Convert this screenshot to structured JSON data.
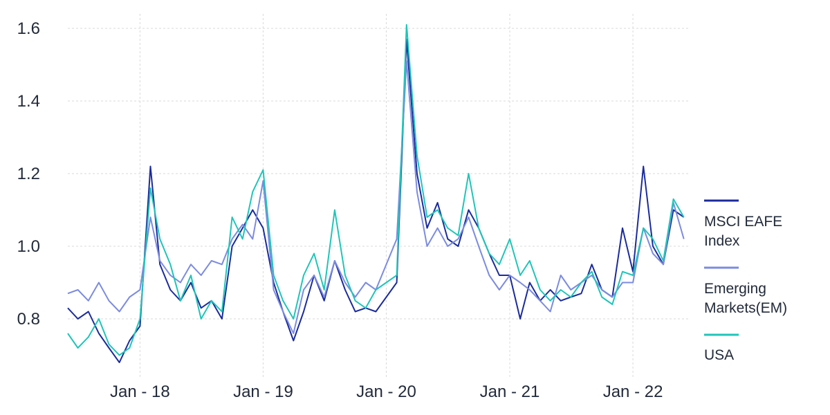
{
  "chart_data": {
    "type": "line",
    "title": "",
    "xlabel": "",
    "ylabel": "",
    "ylim": [
      0.64,
      1.64
    ],
    "xlim": [
      "2017-06-01",
      "2022-06-20"
    ],
    "grid": true,
    "legend_position": "right",
    "y_ticks": [
      {
        "value": 0.8,
        "label": "0.8"
      },
      {
        "value": 1.0,
        "label": "1.0"
      },
      {
        "value": 1.2,
        "label": "1.2"
      },
      {
        "value": 1.4,
        "label": "1.4"
      },
      {
        "value": 1.6,
        "label": "1.6"
      }
    ],
    "x_ticks": [
      {
        "date": "2018-01-01",
        "label": "Jan - 18"
      },
      {
        "date": "2019-01-01",
        "label": "Jan - 19"
      },
      {
        "date": "2020-01-01",
        "label": "Jan - 20"
      },
      {
        "date": "2021-01-01",
        "label": "Jan - 21"
      },
      {
        "date": "2022-01-01",
        "label": "Jan - 22"
      }
    ],
    "series": [
      {
        "name": "MSCI EAFE Index",
        "color": "#1a2b9c",
        "points": [
          [
            "2017-06-01",
            0.83
          ],
          [
            "2017-07-01",
            0.8
          ],
          [
            "2017-08-01",
            0.82
          ],
          [
            "2017-09-01",
            0.76
          ],
          [
            "2017-10-01",
            0.72
          ],
          [
            "2017-11-01",
            0.68
          ],
          [
            "2017-12-01",
            0.74
          ],
          [
            "2018-01-01",
            0.78
          ],
          [
            "2018-02-01",
            1.22
          ],
          [
            "2018-03-01",
            0.95
          ],
          [
            "2018-04-01",
            0.88
          ],
          [
            "2018-05-01",
            0.85
          ],
          [
            "2018-06-01",
            0.9
          ],
          [
            "2018-07-01",
            0.83
          ],
          [
            "2018-08-01",
            0.85
          ],
          [
            "2018-09-01",
            0.8
          ],
          [
            "2018-10-01",
            1.0
          ],
          [
            "2018-11-01",
            1.05
          ],
          [
            "2018-12-01",
            1.1
          ],
          [
            "2019-01-01",
            1.05
          ],
          [
            "2019-02-01",
            0.9
          ],
          [
            "2019-03-01",
            0.82
          ],
          [
            "2019-04-01",
            0.74
          ],
          [
            "2019-05-01",
            0.82
          ],
          [
            "2019-06-01",
            0.92
          ],
          [
            "2019-07-01",
            0.85
          ],
          [
            "2019-08-01",
            0.96
          ],
          [
            "2019-09-01",
            0.88
          ],
          [
            "2019-10-01",
            0.82
          ],
          [
            "2019-11-01",
            0.83
          ],
          [
            "2019-12-01",
            0.82
          ],
          [
            "2020-01-01",
            0.86
          ],
          [
            "2020-02-01",
            0.9
          ],
          [
            "2020-03-01",
            1.57
          ],
          [
            "2020-04-01",
            1.2
          ],
          [
            "2020-05-01",
            1.05
          ],
          [
            "2020-06-01",
            1.12
          ],
          [
            "2020-07-01",
            1.02
          ],
          [
            "2020-08-01",
            1.0
          ],
          [
            "2020-09-01",
            1.1
          ],
          [
            "2020-10-01",
            1.05
          ],
          [
            "2020-11-01",
            0.98
          ],
          [
            "2020-12-01",
            0.92
          ],
          [
            "2021-01-01",
            0.92
          ],
          [
            "2021-02-01",
            0.8
          ],
          [
            "2021-03-01",
            0.9
          ],
          [
            "2021-04-01",
            0.85
          ],
          [
            "2021-05-01",
            0.88
          ],
          [
            "2021-06-01",
            0.85
          ],
          [
            "2021-07-01",
            0.86
          ],
          [
            "2021-08-01",
            0.87
          ],
          [
            "2021-09-01",
            0.95
          ],
          [
            "2021-10-01",
            0.88
          ],
          [
            "2021-11-01",
            0.86
          ],
          [
            "2021-12-01",
            1.05
          ],
          [
            "2022-01-01",
            0.93
          ],
          [
            "2022-02-01",
            1.22
          ],
          [
            "2022-03-01",
            1.0
          ],
          [
            "2022-04-01",
            0.95
          ],
          [
            "2022-05-01",
            1.1
          ],
          [
            "2022-06-01",
            1.08
          ]
        ]
      },
      {
        "name": "Emerging Markets(EM)",
        "color": "#7b8be0",
        "points": [
          [
            "2017-06-01",
            0.87
          ],
          [
            "2017-07-01",
            0.88
          ],
          [
            "2017-08-01",
            0.85
          ],
          [
            "2017-09-01",
            0.9
          ],
          [
            "2017-10-01",
            0.85
          ],
          [
            "2017-11-01",
            0.82
          ],
          [
            "2017-12-01",
            0.86
          ],
          [
            "2018-01-01",
            0.88
          ],
          [
            "2018-02-01",
            1.08
          ],
          [
            "2018-03-01",
            0.96
          ],
          [
            "2018-04-01",
            0.92
          ],
          [
            "2018-05-01",
            0.9
          ],
          [
            "2018-06-01",
            0.95
          ],
          [
            "2018-07-01",
            0.92
          ],
          [
            "2018-08-01",
            0.96
          ],
          [
            "2018-09-01",
            0.95
          ],
          [
            "2018-10-01",
            1.02
          ],
          [
            "2018-11-01",
            1.06
          ],
          [
            "2018-12-01",
            1.02
          ],
          [
            "2019-01-01",
            1.18
          ],
          [
            "2019-02-01",
            0.88
          ],
          [
            "2019-03-01",
            0.82
          ],
          [
            "2019-04-01",
            0.76
          ],
          [
            "2019-05-01",
            0.88
          ],
          [
            "2019-06-01",
            0.92
          ],
          [
            "2019-07-01",
            0.86
          ],
          [
            "2019-08-01",
            0.96
          ],
          [
            "2019-09-01",
            0.9
          ],
          [
            "2019-10-01",
            0.86
          ],
          [
            "2019-11-01",
            0.9
          ],
          [
            "2019-12-01",
            0.88
          ],
          [
            "2020-01-01",
            0.95
          ],
          [
            "2020-02-01",
            1.02
          ],
          [
            "2020-03-01",
            1.51
          ],
          [
            "2020-04-01",
            1.15
          ],
          [
            "2020-05-01",
            1.0
          ],
          [
            "2020-06-01",
            1.05
          ],
          [
            "2020-07-01",
            1.0
          ],
          [
            "2020-08-01",
            1.02
          ],
          [
            "2020-09-01",
            1.08
          ],
          [
            "2020-10-01",
            1.0
          ],
          [
            "2020-11-01",
            0.92
          ],
          [
            "2020-12-01",
            0.88
          ],
          [
            "2021-01-01",
            0.92
          ],
          [
            "2021-02-01",
            0.9
          ],
          [
            "2021-03-01",
            0.88
          ],
          [
            "2021-04-01",
            0.85
          ],
          [
            "2021-05-01",
            0.82
          ],
          [
            "2021-06-01",
            0.92
          ],
          [
            "2021-07-01",
            0.88
          ],
          [
            "2021-08-01",
            0.9
          ],
          [
            "2021-09-01",
            0.92
          ],
          [
            "2021-10-01",
            0.88
          ],
          [
            "2021-11-01",
            0.86
          ],
          [
            "2021-12-01",
            0.9
          ],
          [
            "2022-01-01",
            0.9
          ],
          [
            "2022-02-01",
            1.05
          ],
          [
            "2022-03-01",
            0.98
          ],
          [
            "2022-04-01",
            0.95
          ],
          [
            "2022-05-01",
            1.12
          ],
          [
            "2022-06-01",
            1.02
          ]
        ]
      },
      {
        "name": "USA",
        "color": "#1fc5b8",
        "points": [
          [
            "2017-06-01",
            0.76
          ],
          [
            "2017-07-01",
            0.72
          ],
          [
            "2017-08-01",
            0.75
          ],
          [
            "2017-09-01",
            0.8
          ],
          [
            "2017-10-01",
            0.73
          ],
          [
            "2017-11-01",
            0.7
          ],
          [
            "2017-12-01",
            0.72
          ],
          [
            "2018-01-01",
            0.8
          ],
          [
            "2018-02-01",
            1.16
          ],
          [
            "2018-03-01",
            1.02
          ],
          [
            "2018-04-01",
            0.95
          ],
          [
            "2018-05-01",
            0.85
          ],
          [
            "2018-06-01",
            0.92
          ],
          [
            "2018-07-01",
            0.8
          ],
          [
            "2018-08-01",
            0.85
          ],
          [
            "2018-09-01",
            0.82
          ],
          [
            "2018-10-01",
            1.08
          ],
          [
            "2018-11-01",
            1.02
          ],
          [
            "2018-12-01",
            1.15
          ],
          [
            "2019-01-01",
            1.21
          ],
          [
            "2019-02-01",
            0.92
          ],
          [
            "2019-03-01",
            0.85
          ],
          [
            "2019-04-01",
            0.8
          ],
          [
            "2019-05-01",
            0.92
          ],
          [
            "2019-06-01",
            0.98
          ],
          [
            "2019-07-01",
            0.88
          ],
          [
            "2019-08-01",
            1.1
          ],
          [
            "2019-09-01",
            0.92
          ],
          [
            "2019-10-01",
            0.85
          ],
          [
            "2019-11-01",
            0.83
          ],
          [
            "2019-12-01",
            0.88
          ],
          [
            "2020-01-01",
            0.9
          ],
          [
            "2020-02-01",
            0.92
          ],
          [
            "2020-03-01",
            1.61
          ],
          [
            "2020-04-01",
            1.25
          ],
          [
            "2020-05-01",
            1.08
          ],
          [
            "2020-06-01",
            1.1
          ],
          [
            "2020-07-01",
            1.05
          ],
          [
            "2020-08-01",
            1.03
          ],
          [
            "2020-09-01",
            1.2
          ],
          [
            "2020-10-01",
            1.05
          ],
          [
            "2020-11-01",
            0.98
          ],
          [
            "2020-12-01",
            0.95
          ],
          [
            "2021-01-01",
            1.02
          ],
          [
            "2021-02-01",
            0.92
          ],
          [
            "2021-03-01",
            0.96
          ],
          [
            "2021-04-01",
            0.88
          ],
          [
            "2021-05-01",
            0.85
          ],
          [
            "2021-06-01",
            0.88
          ],
          [
            "2021-07-01",
            0.86
          ],
          [
            "2021-08-01",
            0.9
          ],
          [
            "2021-09-01",
            0.93
          ],
          [
            "2021-10-01",
            0.86
          ],
          [
            "2021-11-01",
            0.84
          ],
          [
            "2021-12-01",
            0.93
          ],
          [
            "2022-01-01",
            0.92
          ],
          [
            "2022-02-01",
            1.05
          ],
          [
            "2022-03-01",
            1.02
          ],
          [
            "2022-04-01",
            0.96
          ],
          [
            "2022-05-01",
            1.13
          ],
          [
            "2022-06-01",
            1.08
          ]
        ]
      }
    ]
  }
}
